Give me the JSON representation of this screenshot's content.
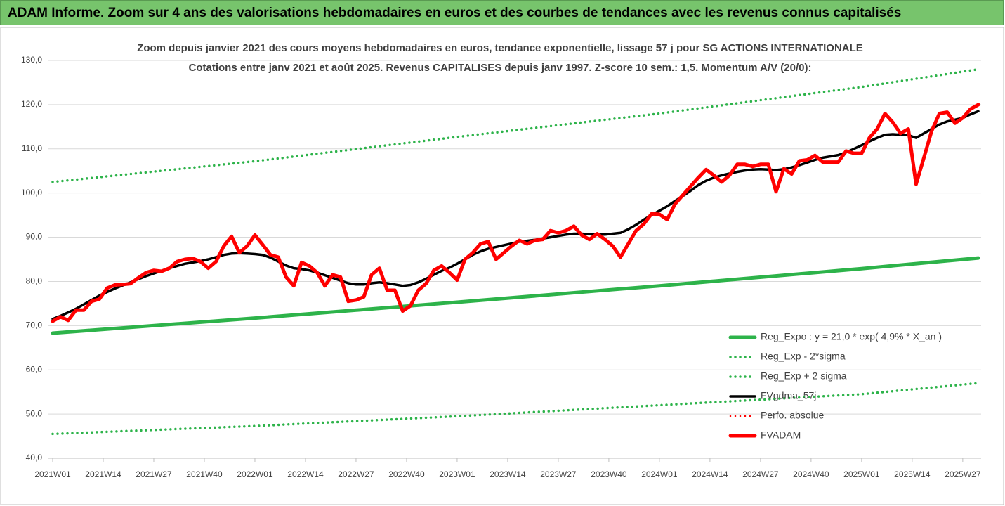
{
  "banner": "ADAM Informe. Zoom sur 4 ans des valorisations hebdomadaires en euros et des courbes de tendances avec les revenus connus capitalisés",
  "chart_data": {
    "type": "line",
    "title": "Zoom depuis janvier 2021 des cours moyens hebdomadaires en euros, tendance exponentielle, lissage 57 j pour SG ACTIONS INTERNATIONALE",
    "subtitle": "Cotations entre janv 2021 et août 2025. Revenus CAPITALISES depuis janv 1997. Z-score 10 sem.: 1,5. Momentum A/V (20/0):",
    "xlim": [
      "2021W01",
      "2025W31"
    ],
    "xticks": [
      "2021W01",
      "2021W14",
      "2021W27",
      "2021W40",
      "2022W01",
      "2022W14",
      "2022W27",
      "2022W40",
      "2023W01",
      "2023W14",
      "2023W27",
      "2023W40",
      "2024W01",
      "2024W14",
      "2024W27",
      "2024W40",
      "2025W01",
      "2025W14",
      "2025W27"
    ],
    "ylim": [
      40,
      130
    ],
    "yticks": [
      {
        "value": 40,
        "label": "40,0"
      },
      {
        "value": 50,
        "label": "50,0"
      },
      {
        "value": 60,
        "label": "60,0"
      },
      {
        "value": 70,
        "label": "70,0"
      },
      {
        "value": 80,
        "label": "80,0"
      },
      {
        "value": 90,
        "label": "90,0"
      },
      {
        "value": 100,
        "label": "100,0"
      },
      {
        "value": 110,
        "label": "110,0"
      },
      {
        "value": 120,
        "label": "120,0"
      },
      {
        "value": 130,
        "label": "130,0"
      }
    ],
    "grid": true,
    "legend": "lower-right",
    "x": [
      "2021W01",
      "2021W03",
      "2021W05",
      "2021W07",
      "2021W09",
      "2021W11",
      "2021W13",
      "2021W15",
      "2021W17",
      "2021W19",
      "2021W21",
      "2021W23",
      "2021W25",
      "2021W27",
      "2021W29",
      "2021W31",
      "2021W33",
      "2021W35",
      "2021W37",
      "2021W39",
      "2021W41",
      "2021W43",
      "2021W45",
      "2021W47",
      "2021W49",
      "2021W51",
      "2022W01",
      "2022W03",
      "2022W05",
      "2022W07",
      "2022W09",
      "2022W11",
      "2022W13",
      "2022W15",
      "2022W17",
      "2022W19",
      "2022W21",
      "2022W23",
      "2022W25",
      "2022W27",
      "2022W29",
      "2022W31",
      "2022W33",
      "2022W35",
      "2022W37",
      "2022W39",
      "2022W41",
      "2022W43",
      "2022W45",
      "2022W47",
      "2022W49",
      "2022W51",
      "2023W01",
      "2023W03",
      "2023W05",
      "2023W07",
      "2023W09",
      "2023W11",
      "2023W13",
      "2023W15",
      "2023W17",
      "2023W19",
      "2023W21",
      "2023W23",
      "2023W25",
      "2023W27",
      "2023W29",
      "2023W31",
      "2023W33",
      "2023W35",
      "2023W37",
      "2023W39",
      "2023W41",
      "2023W43",
      "2023W45",
      "2023W47",
      "2023W49",
      "2023W51",
      "2024W01",
      "2024W03",
      "2024W05",
      "2024W07",
      "2024W09",
      "2024W11",
      "2024W13",
      "2024W15",
      "2024W17",
      "2024W19",
      "2024W21",
      "2024W23",
      "2024W25",
      "2024W27",
      "2024W29",
      "2024W31",
      "2024W33",
      "2024W35",
      "2024W37",
      "2024W39",
      "2024W41",
      "2024W43",
      "2024W45",
      "2024W47",
      "2024W49",
      "2024W51",
      "2025W01",
      "2025W03",
      "2025W05",
      "2025W07",
      "2025W09",
      "2025W11",
      "2025W13",
      "2025W15",
      "2025W17",
      "2025W19",
      "2025W21",
      "2025W23",
      "2025W25",
      "2025W27",
      "2025W29",
      "2025W31"
    ],
    "series": [
      {
        "name": "Reg_Expo : y = 21,0 * exp( 4,9% *  X_an )",
        "color": "#2db34a",
        "style": "solid",
        "x": [
          "2021W01",
          "2022W01",
          "2023W01",
          "2024W01",
          "2025W01",
          "2025W31"
        ],
        "values": [
          68.3,
          71.7,
          75.3,
          79.0,
          82.9,
          85.3
        ]
      },
      {
        "name": "Reg_Exp - 2*sigma",
        "color": "#2db34a",
        "style": "dotted",
        "x": [
          "2021W01",
          "2022W01",
          "2023W01",
          "2024W01",
          "2025W01",
          "2025W31"
        ],
        "values": [
          45.5,
          47.3,
          49.5,
          52.0,
          54.5,
          57.0
        ]
      },
      {
        "name": "Reg_Exp + 2 sigma",
        "color": "#2db34a",
        "style": "dotted",
        "x": [
          "2021W01",
          "2022W01",
          "2023W01",
          "2024W01",
          "2025W01",
          "2025W31"
        ],
        "values": [
          102.5,
          107.2,
          112.7,
          118.0,
          124.0,
          128.0
        ]
      },
      {
        "name": "FVgdma_57j",
        "color": "#000000",
        "style": "solid",
        "values": [
          71.5,
          72.2,
          73,
          73.8,
          74.8,
          75.8,
          76.8,
          77.6,
          78.4,
          79.1,
          79.8,
          80.5,
          81.2,
          81.8,
          82.4,
          83,
          83.5,
          84,
          84.3,
          84.6,
          85,
          85.5,
          86,
          86.3,
          86.4,
          86.3,
          86.2,
          86,
          85.4,
          84.5,
          83.6,
          83,
          82.8,
          82.5,
          82,
          81.4,
          80.8,
          80.2,
          79.6,
          79.3,
          79.3,
          79.6,
          79.8,
          79.6,
          79.3,
          79,
          79.2,
          79.8,
          80.6,
          81.5,
          82.4,
          83.1,
          84,
          85,
          86,
          86.8,
          87.4,
          87.8,
          88.2,
          88.6,
          89,
          89.2,
          89.4,
          89.7,
          90,
          90.3,
          90.6,
          90.8,
          90.8,
          90.7,
          90.6,
          90.6,
          90.8,
          91,
          91.8,
          92.8,
          94,
          95,
          96,
          97,
          98.2,
          99.3,
          100.5,
          101.8,
          102.8,
          103.5,
          104,
          104.4,
          104.8,
          105.1,
          105.3,
          105.4,
          105.3,
          105.2,
          105.4,
          105.8,
          106.3,
          106.9,
          107.5,
          108,
          108.3,
          108.6,
          109.2,
          110,
          110.8,
          111.7,
          112.5,
          113.2,
          113.3,
          113.2,
          113.1,
          112.5,
          113.5,
          114.5,
          115.5,
          116.2,
          116.6,
          117,
          117.8,
          118.5
        ]
      },
      {
        "name": "Perfo. absolue",
        "color": "#ff0000",
        "style": "dotted",
        "x": [],
        "values": []
      },
      {
        "name": "FVADAM",
        "color": "#ff0000",
        "style": "solid",
        "values": [
          71,
          72,
          71.2,
          73.5,
          73.5,
          75.5,
          76,
          78.5,
          79.2,
          79.3,
          79.5,
          80.8,
          82,
          82.5,
          82.3,
          83,
          84.5,
          85,
          85.2,
          84.5,
          83,
          84.5,
          88,
          90.2,
          86.5,
          88,
          90.5,
          88.3,
          86,
          85.5,
          81,
          79,
          84.3,
          83.5,
          82,
          79,
          81.5,
          81,
          75.5,
          75.8,
          76.5,
          81.5,
          83,
          78,
          78,
          73.3,
          74.5,
          78,
          79.5,
          82.5,
          83.5,
          82,
          80.3,
          85,
          86.5,
          88.5,
          89,
          85,
          86.5,
          88,
          89.3,
          88.5,
          89.3,
          89.5,
          91.5,
          91,
          91.5,
          92.5,
          90.5,
          89.5,
          90.8,
          89.5,
          88,
          85.5,
          88.5,
          91.5,
          93,
          95.3,
          95.2,
          94,
          97.5,
          99.5,
          101.5,
          103.5,
          105.3,
          104,
          102.5,
          104,
          106.5,
          106.5,
          106,
          106.5,
          106.5,
          100.3,
          105.5,
          104.3,
          107.3,
          107.5,
          108.5,
          107,
          107,
          107,
          109.5,
          109,
          109,
          112.5,
          114.5,
          118,
          116,
          113.5,
          114.5,
          102,
          108,
          114,
          118,
          118.3,
          115.8,
          117,
          119,
          120
        ]
      }
    ]
  }
}
